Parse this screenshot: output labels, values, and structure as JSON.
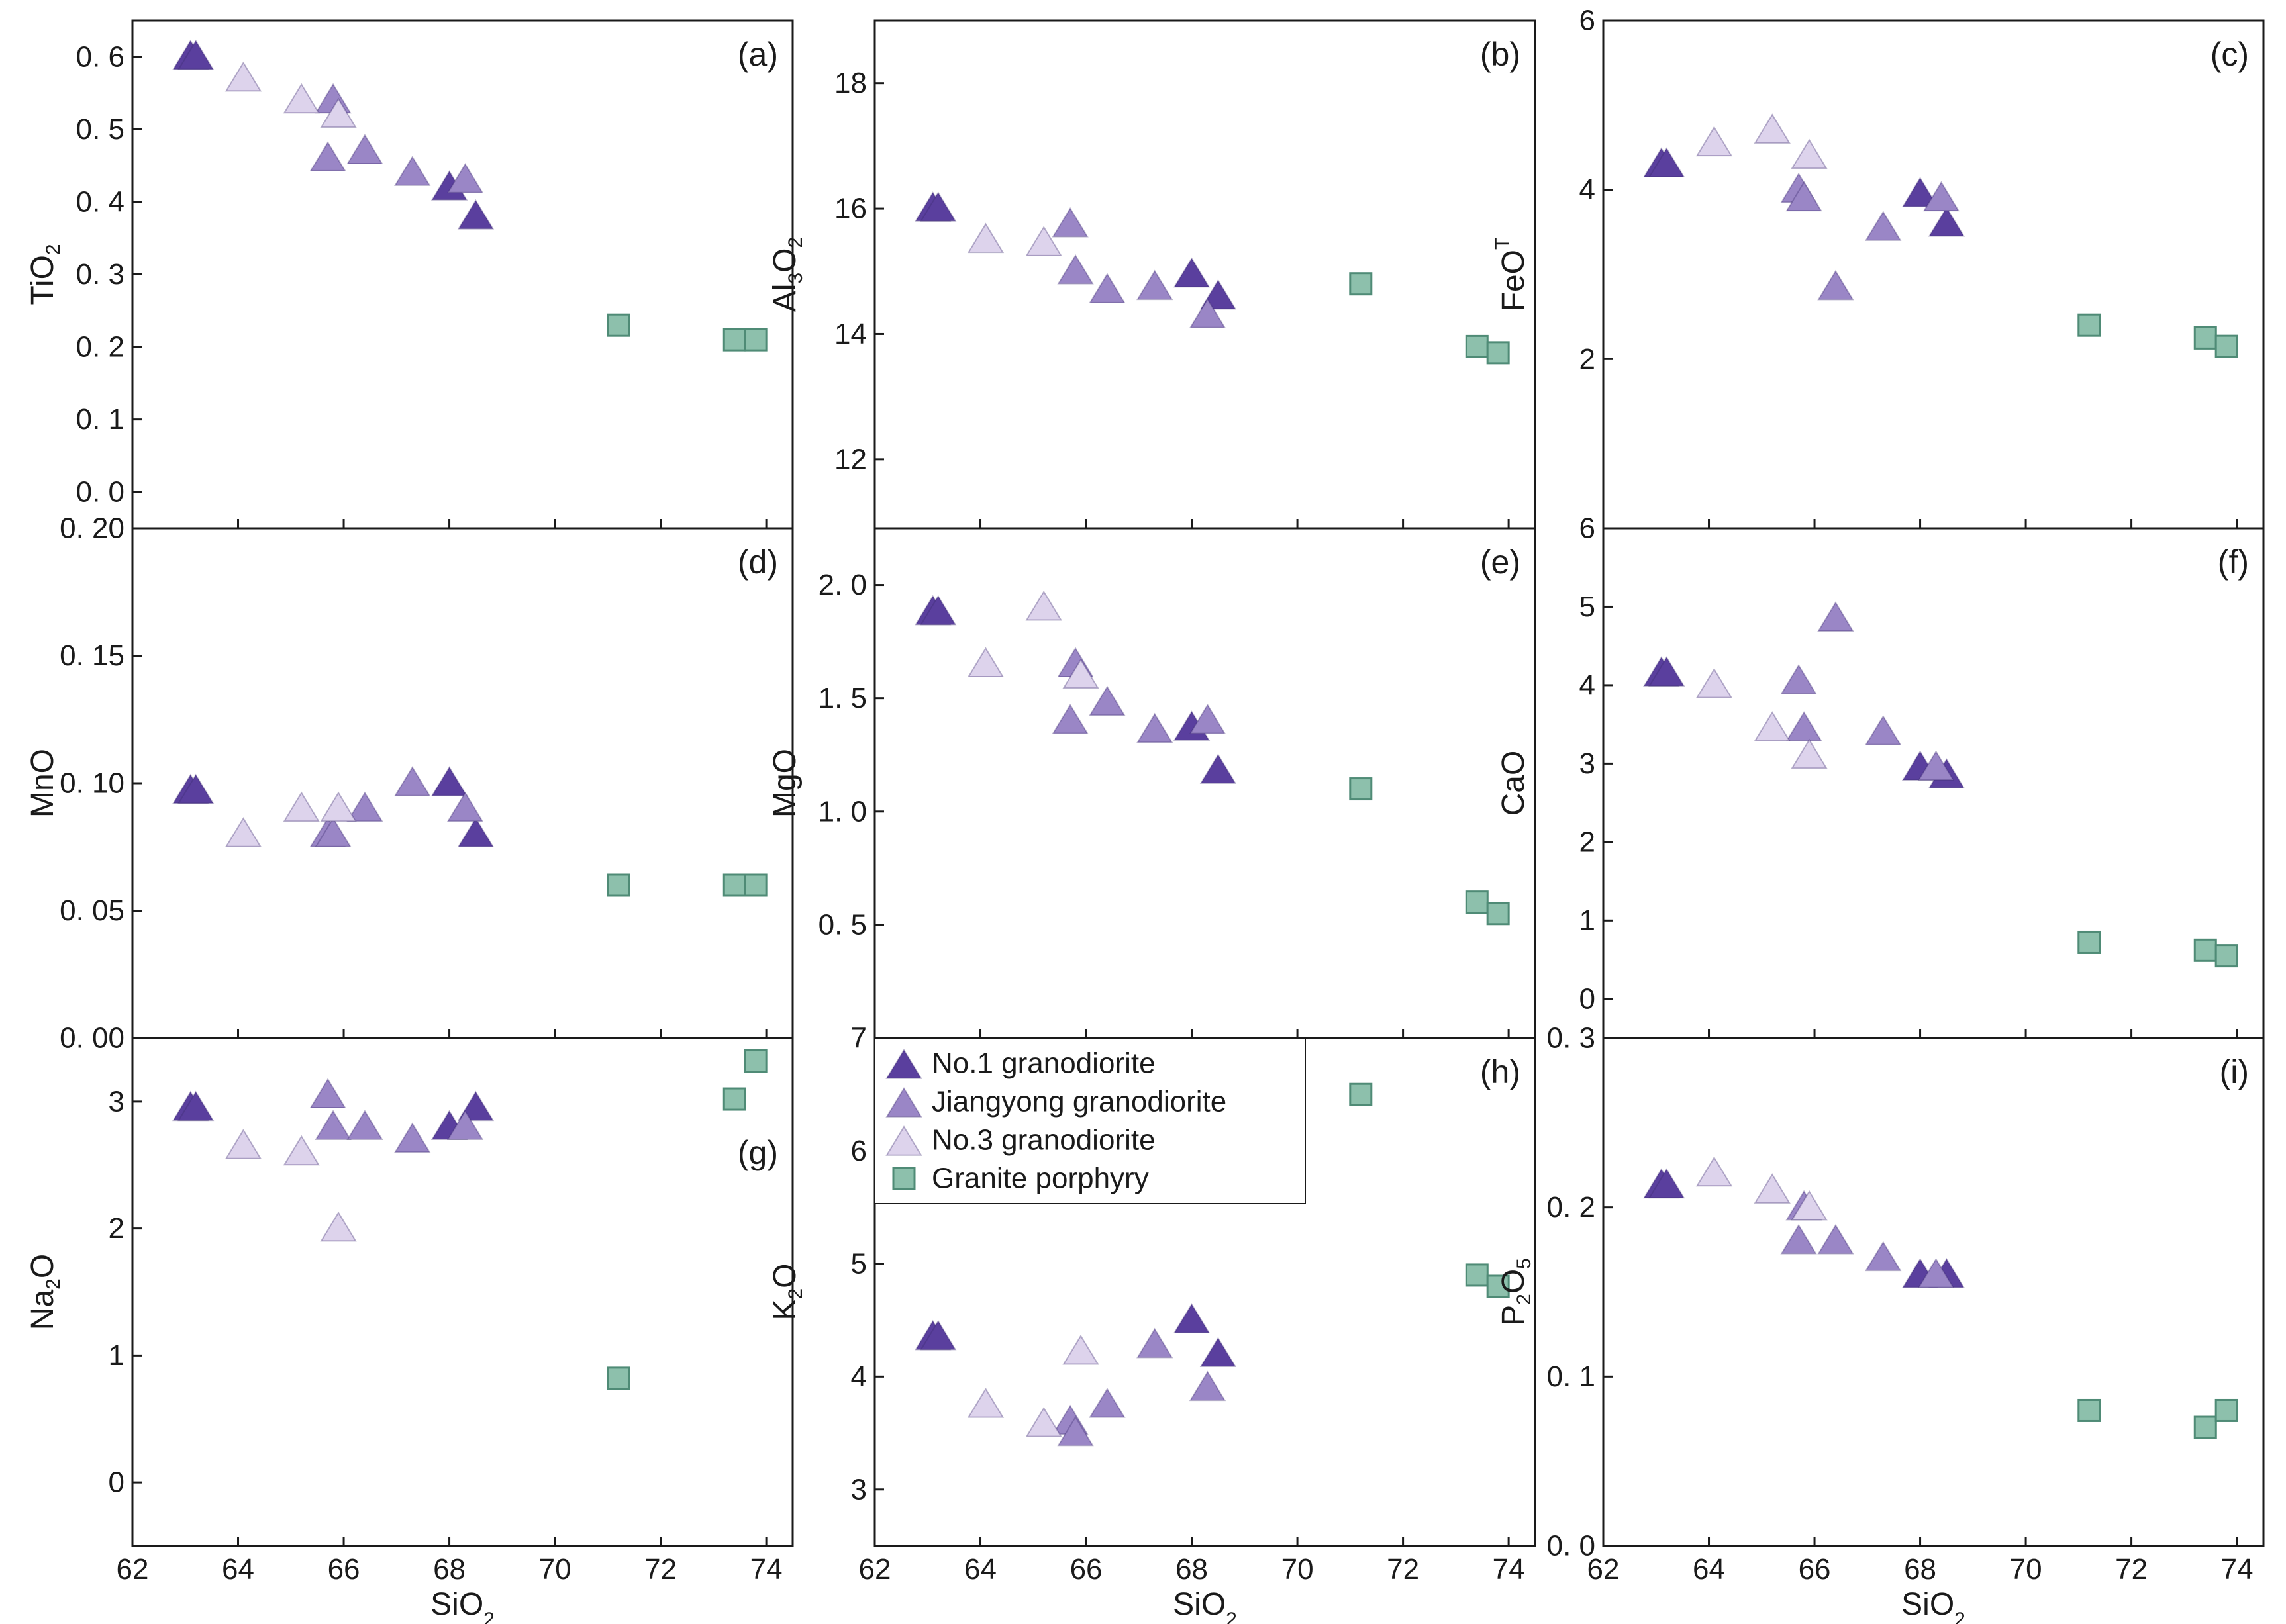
{
  "colors": {
    "no1": "#5a3f9e",
    "jiangyong": "#9a86c6",
    "no3": "#ddd3ec",
    "porphyry": "#8dc0ac",
    "axis": "#1a1a1a"
  },
  "legend": {
    "items": [
      {
        "series": "no1",
        "label": "No.1 granodiorite"
      },
      {
        "series": "jiangyong",
        "label": "Jiangyong granodiorite"
      },
      {
        "series": "no3",
        "label": "No.3 granodiorite"
      },
      {
        "series": "porphyry",
        "label": "Granite porphyry"
      }
    ]
  },
  "chart_data": [
    {
      "type": "scatter",
      "panel": "(a)",
      "title": "",
      "xlabel": "SiO2",
      "ylabel": "TiO2",
      "xlim": [
        62,
        74.5
      ],
      "ylim": [
        -0.05,
        0.65
      ],
      "x_ticks": [],
      "x_tick_labels": [],
      "y_ticks": [
        0,
        0.1,
        0.2,
        0.3,
        0.4,
        0.5,
        0.6
      ],
      "y_tick_labels": [
        "0. 0",
        "0. 1",
        "0. 2",
        "0. 3",
        "0. 4",
        "0. 5",
        "0. 6"
      ],
      "series": [
        {
          "name": "No.1 granodiorite",
          "key": "no1",
          "x": [
            63.1,
            63.2,
            68.0,
            68.5
          ],
          "y": [
            0.6,
            0.6,
            0.42,
            0.38
          ]
        },
        {
          "name": "Jiangyong granodiorite",
          "key": "jiangyong",
          "x": [
            65.7,
            65.8,
            66.4,
            67.3,
            68.3
          ],
          "y": [
            0.46,
            0.54,
            0.47,
            0.44,
            0.43
          ]
        },
        {
          "name": "No.3 granodiorite",
          "key": "no3",
          "x": [
            64.1,
            65.2,
            65.9
          ],
          "y": [
            0.57,
            0.54,
            0.52
          ]
        },
        {
          "name": "Granite porphyry",
          "key": "porphyry",
          "x": [
            71.2,
            73.4,
            73.8
          ],
          "y": [
            0.23,
            0.21,
            0.21
          ]
        }
      ]
    },
    {
      "type": "scatter",
      "panel": "(b)",
      "title": "",
      "xlabel": "SiO2",
      "ylabel": "Al3O2",
      "xlim": [
        62,
        74.5
      ],
      "ylim": [
        10.9,
        19.0
      ],
      "x_ticks": [],
      "x_tick_labels": [],
      "y_ticks": [
        12,
        14,
        16,
        18
      ],
      "y_tick_labels": [
        "12",
        "14",
        "16",
        "18"
      ],
      "series": [
        {
          "name": "No.1 granodiorite",
          "key": "no1",
          "x": [
            63.1,
            63.2,
            68.0,
            68.5
          ],
          "y": [
            16.0,
            16.0,
            14.95,
            14.6
          ]
        },
        {
          "name": "Jiangyong granodiorite",
          "key": "jiangyong",
          "x": [
            65.7,
            65.8,
            66.4,
            67.3,
            68.3
          ],
          "y": [
            15.75,
            15.0,
            14.7,
            14.75,
            14.3
          ]
        },
        {
          "name": "No.3 granodiorite",
          "key": "no3",
          "x": [
            64.1,
            65.2
          ],
          "y": [
            15.5,
            15.45
          ]
        },
        {
          "name": "Granite porphyry",
          "key": "porphyry",
          "x": [
            71.2,
            73.4,
            73.8
          ],
          "y": [
            14.8,
            13.8,
            13.7
          ]
        }
      ]
    },
    {
      "type": "scatter",
      "panel": "(c)",
      "title": "",
      "xlabel": "SiO2",
      "ylabel": "FeOT",
      "xlim": [
        62,
        74.5
      ],
      "ylim": [
        0,
        6
      ],
      "x_ticks": [],
      "x_tick_labels": [],
      "y_ticks": [
        2,
        4,
        6
      ],
      "y_tick_labels": [
        "2",
        "4",
        "6"
      ],
      "series": [
        {
          "name": "No.1 granodiorite",
          "key": "no1",
          "x": [
            63.1,
            63.2,
            68.0,
            68.5
          ],
          "y": [
            4.3,
            4.3,
            3.95,
            3.6
          ]
        },
        {
          "name": "Jiangyong granodiorite",
          "key": "jiangyong",
          "x": [
            65.7,
            65.8,
            66.4,
            67.3,
            68.4
          ],
          "y": [
            4.0,
            3.9,
            2.85,
            3.55,
            3.9
          ]
        },
        {
          "name": "No.3 granodiorite",
          "key": "no3",
          "x": [
            64.1,
            65.2,
            65.9
          ],
          "y": [
            4.55,
            4.7,
            4.4
          ]
        },
        {
          "name": "Granite porphyry",
          "key": "porphyry",
          "x": [
            71.2,
            73.4,
            73.8
          ],
          "y": [
            2.4,
            2.25,
            2.15
          ]
        }
      ]
    },
    {
      "type": "scatter",
      "panel": "(d)",
      "title": "",
      "xlabel": "SiO2",
      "ylabel": "MnO",
      "xlim": [
        62,
        74.5
      ],
      "ylim": [
        0,
        0.2
      ],
      "x_ticks": [],
      "x_tick_labels": [],
      "y_ticks": [
        0,
        0.05,
        0.1,
        0.15,
        0.2
      ],
      "y_tick_labels": [
        "0. 00",
        "0. 05",
        "0. 10",
        "0. 15",
        "0. 20"
      ],
      "series": [
        {
          "name": "No.1 granodiorite",
          "key": "no1",
          "x": [
            63.1,
            63.2,
            68.0,
            68.5
          ],
          "y": [
            0.097,
            0.097,
            0.1,
            0.08
          ]
        },
        {
          "name": "Jiangyong granodiorite",
          "key": "jiangyong",
          "x": [
            65.7,
            65.8,
            66.4,
            67.3,
            68.3
          ],
          "y": [
            0.08,
            0.08,
            0.09,
            0.1,
            0.09
          ]
        },
        {
          "name": "No.3 granodiorite",
          "key": "no3",
          "x": [
            64.1,
            65.2,
            65.9
          ],
          "y": [
            0.08,
            0.09,
            0.09
          ]
        },
        {
          "name": "Granite porphyry",
          "key": "porphyry",
          "x": [
            71.2,
            73.4,
            73.8
          ],
          "y": [
            0.06,
            0.06,
            0.06
          ]
        }
      ]
    },
    {
      "type": "scatter",
      "panel": "(e)",
      "title": "",
      "xlabel": "SiO2",
      "ylabel": "MgO",
      "xlim": [
        62,
        74.5
      ],
      "ylim": [
        0,
        2.25
      ],
      "x_ticks": [],
      "x_tick_labels": [],
      "y_ticks": [
        0.5,
        1.0,
        1.5,
        2.0
      ],
      "y_tick_labels": [
        "0. 5",
        "1. 0",
        "1. 5",
        "2. 0"
      ],
      "series": [
        {
          "name": "No.1 granodiorite",
          "key": "no1",
          "x": [
            63.1,
            63.2,
            68.0,
            68.5
          ],
          "y": [
            1.88,
            1.88,
            1.37,
            1.18
          ]
        },
        {
          "name": "Jiangyong granodiorite",
          "key": "jiangyong",
          "x": [
            65.7,
            65.8,
            66.4,
            67.3,
            68.3
          ],
          "y": [
            1.4,
            1.65,
            1.48,
            1.36,
            1.4
          ]
        },
        {
          "name": "No.3 granodiorite",
          "key": "no3",
          "x": [
            64.1,
            65.2,
            65.9
          ],
          "y": [
            1.65,
            1.9,
            1.6
          ]
        },
        {
          "name": "Granite porphyry",
          "key": "porphyry",
          "x": [
            71.2,
            73.4,
            73.8
          ],
          "y": [
            1.1,
            0.6,
            0.55
          ]
        }
      ]
    },
    {
      "type": "scatter",
      "panel": "(f)",
      "title": "",
      "xlabel": "SiO2",
      "ylabel": "CaO",
      "xlim": [
        62,
        74.5
      ],
      "ylim": [
        -0.5,
        6
      ],
      "x_ticks": [],
      "x_tick_labels": [],
      "y_ticks": [
        0,
        1,
        2,
        3,
        4,
        5,
        6
      ],
      "y_tick_labels": [
        "0",
        "1",
        "2",
        "3",
        "4",
        "5",
        "6"
      ],
      "series": [
        {
          "name": "No.1 granodiorite",
          "key": "no1",
          "x": [
            63.1,
            63.2,
            68.0,
            68.5
          ],
          "y": [
            4.15,
            4.15,
            2.95,
            2.85
          ]
        },
        {
          "name": "Jiangyong granodiorite",
          "key": "jiangyong",
          "x": [
            65.7,
            65.8,
            66.4,
            67.3,
            68.3
          ],
          "y": [
            4.05,
            3.45,
            4.85,
            3.4,
            2.95
          ]
        },
        {
          "name": "No.3 granodiorite",
          "key": "no3",
          "x": [
            64.1,
            65.2,
            65.9
          ],
          "y": [
            4.0,
            3.45,
            3.1
          ]
        },
        {
          "name": "Granite porphyry",
          "key": "porphyry",
          "x": [
            71.2,
            73.4,
            73.8
          ],
          "y": [
            0.72,
            0.62,
            0.55
          ]
        }
      ]
    },
    {
      "type": "scatter",
      "panel": "(g)",
      "title": "",
      "xlabel": "SiO2",
      "ylabel": "Na2O",
      "xlim": [
        62,
        74.5
      ],
      "ylim": [
        -0.5,
        3.5
      ],
      "x_ticks": [
        62,
        64,
        66,
        68,
        70,
        72,
        74
      ],
      "x_tick_labels": [
        "62",
        "64",
        "66",
        "68",
        "70",
        "72",
        "74"
      ],
      "y_ticks": [
        0,
        1,
        2,
        3
      ],
      "y_tick_labels": [
        "0",
        "1",
        "2",
        "3"
      ],
      "series": [
        {
          "name": "No.1 granodiorite",
          "key": "no1",
          "x": [
            63.1,
            63.2,
            68.0,
            68.5
          ],
          "y": [
            2.95,
            2.95,
            2.8,
            2.95
          ]
        },
        {
          "name": "Jiangyong granodiorite",
          "key": "jiangyong",
          "x": [
            65.7,
            65.8,
            66.4,
            67.3,
            68.3
          ],
          "y": [
            3.05,
            2.8,
            2.8,
            2.7,
            2.8
          ]
        },
        {
          "name": "No.3 granodiorite",
          "key": "no3",
          "x": [
            64.1,
            65.2,
            65.9
          ],
          "y": [
            2.65,
            2.6,
            2.0
          ]
        },
        {
          "name": "Granite porphyry",
          "key": "porphyry",
          "x": [
            71.2,
            73.4,
            73.8
          ],
          "y": [
            0.82,
            3.02,
            3.32
          ]
        }
      ]
    },
    {
      "type": "scatter",
      "panel": "(h)",
      "title": "",
      "xlabel": "SiO2",
      "ylabel": "K2O",
      "xlim": [
        62,
        74.5
      ],
      "ylim": [
        2.5,
        7
      ],
      "x_ticks": [
        62,
        64,
        66,
        68,
        70,
        72,
        74
      ],
      "x_tick_labels": [
        "62",
        "64",
        "66",
        "68",
        "70",
        "72",
        "74"
      ],
      "y_ticks": [
        3,
        4,
        5,
        6,
        7
      ],
      "y_tick_labels": [
        "3",
        "4",
        "5",
        "6",
        "7"
      ],
      "series": [
        {
          "name": "No.1 granodiorite",
          "key": "no1",
          "x": [
            63.1,
            63.2,
            68.0,
            68.5
          ],
          "y": [
            4.35,
            4.35,
            4.5,
            4.2
          ]
        },
        {
          "name": "Jiangyong granodiorite",
          "key": "jiangyong",
          "x": [
            65.7,
            65.8,
            66.4,
            67.3,
            68.3
          ],
          "y": [
            3.6,
            3.5,
            3.75,
            4.28,
            3.9
          ]
        },
        {
          "name": "No.3 granodiorite",
          "key": "no3",
          "x": [
            64.1,
            65.2,
            65.9
          ],
          "y": [
            3.75,
            3.58,
            4.22
          ]
        },
        {
          "name": "Granite porphyry",
          "key": "porphyry",
          "x": [
            71.2,
            73.4,
            73.8
          ],
          "y": [
            6.5,
            4.9,
            4.8
          ]
        }
      ]
    },
    {
      "type": "scatter",
      "panel": "(i)",
      "title": "",
      "xlabel": "SiO2",
      "ylabel": "P2O5",
      "xlim": [
        62,
        74.5
      ],
      "ylim": [
        0,
        0.3
      ],
      "x_ticks": [
        62,
        64,
        66,
        68,
        70,
        72,
        74
      ],
      "x_tick_labels": [
        "62",
        "64",
        "66",
        "68",
        "70",
        "72",
        "74"
      ],
      "y_ticks": [
        0,
        0.1,
        0.2,
        0.3
      ],
      "y_tick_labels": [
        "0. 0",
        "0. 1",
        "0. 2",
        "0. 3"
      ],
      "series": [
        {
          "name": "No.1 granodiorite",
          "key": "no1",
          "x": [
            63.1,
            63.2,
            68.0,
            68.5
          ],
          "y": [
            0.213,
            0.213,
            0.16,
            0.16
          ]
        },
        {
          "name": "Jiangyong granodiorite",
          "key": "jiangyong",
          "x": [
            65.7,
            65.8,
            66.4,
            67.3,
            68.3
          ],
          "y": [
            0.18,
            0.2,
            0.18,
            0.17,
            0.16
          ]
        },
        {
          "name": "No.3 granodiorite",
          "key": "no3",
          "x": [
            64.1,
            65.2,
            65.9
          ],
          "y": [
            0.22,
            0.21,
            0.2
          ]
        },
        {
          "name": "Granite porphyry",
          "key": "porphyry",
          "x": [
            71.2,
            73.4,
            73.8
          ],
          "y": [
            0.08,
            0.07,
            0.08
          ]
        }
      ]
    }
  ]
}
